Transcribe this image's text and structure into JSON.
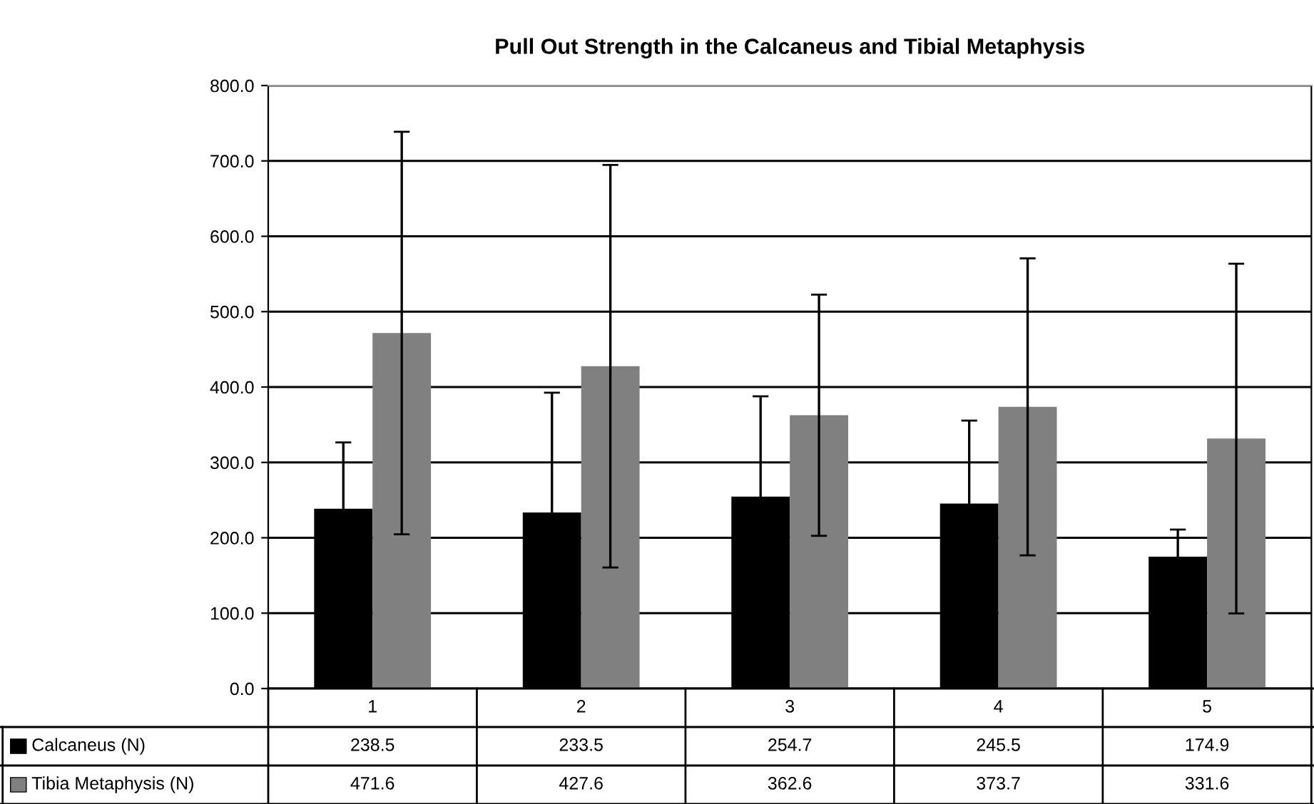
{
  "chart_data": {
    "type": "bar",
    "title": "Pull Out Strength in the Calcaneus and Tibial Metaphysis",
    "categories": [
      "1",
      "2",
      "3",
      "4",
      "5"
    ],
    "series": [
      {
        "name": "Calcaneus (N)",
        "color": "#000000",
        "values": [
          238.5,
          233.5,
          254.7,
          245.5,
          174.9
        ],
        "errors": [
          88,
          159,
          133,
          110,
          36
        ]
      },
      {
        "name": "Tibia Metaphysis (N)",
        "color": "#808080",
        "values": [
          471.6,
          427.6,
          362.6,
          373.7,
          331.6
        ],
        "errors": [
          267,
          267,
          160,
          197,
          232
        ]
      }
    ],
    "ylim": [
      0,
      800
    ],
    "yticks": [
      {
        "value": 0,
        "label": "0.0"
      },
      {
        "value": 100,
        "label": "100.0"
      },
      {
        "value": 200,
        "label": "200.0"
      },
      {
        "value": 300,
        "label": "300.0"
      },
      {
        "value": 400,
        "label": "400.0"
      },
      {
        "value": 500,
        "label": "500.0"
      },
      {
        "value": 600,
        "label": "600.0"
      },
      {
        "value": 700,
        "label": "700.0"
      },
      {
        "value": 800,
        "label": "800.0"
      }
    ],
    "grid": "y",
    "legend": "bottom",
    "data_labels": true
  }
}
